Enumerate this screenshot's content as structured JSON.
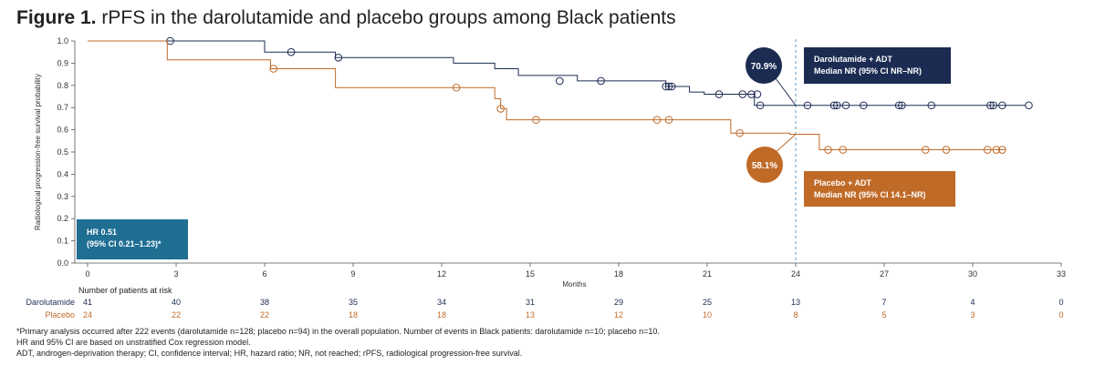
{
  "title": {
    "prefix": "Figure 1.",
    "text": " rPFS in the darolutamide and placebo groups among Black patients"
  },
  "colors": {
    "darolutamide": "#1b2b52",
    "placebo": "#c06a28",
    "hr_box": "#1f6f93",
    "dashed": "#4a90c4"
  },
  "chart_data": {
    "type": "line",
    "subtype": "kaplan-meier",
    "xlabel": "Months",
    "ylabel": "Radiological progression-free survival probability",
    "xlim": [
      0,
      33
    ],
    "ylim": [
      0,
      1.0
    ],
    "x_ticks": [
      0,
      3,
      6,
      9,
      12,
      15,
      18,
      21,
      24,
      27,
      30,
      33
    ],
    "y_ticks": [
      0.0,
      0.1,
      0.2,
      0.3,
      0.4,
      0.5,
      0.6,
      0.7,
      0.8,
      0.9,
      1.0
    ],
    "y_tick_labels": [
      "0.0",
      "0.1",
      "0.2",
      "0.3",
      "0.4",
      "0.5",
      "0.6",
      "0.7",
      "0.8",
      "0.9",
      "1.0"
    ],
    "grid": false,
    "reference_line_x": 24,
    "series": [
      {
        "name": "Darolutamide",
        "steps": [
          [
            0,
            1.0
          ],
          [
            6.0,
            0.95
          ],
          [
            8.4,
            0.925
          ],
          [
            12.4,
            0.9
          ],
          [
            13.8,
            0.875
          ],
          [
            14.6,
            0.845
          ],
          [
            16.6,
            0.82
          ],
          [
            19.6,
            0.795
          ],
          [
            20.4,
            0.77
          ],
          [
            20.9,
            0.76
          ],
          [
            22.6,
            0.71
          ],
          [
            31.8,
            0.71
          ]
        ],
        "censored": [
          [
            2.8,
            1.0
          ],
          [
            6.9,
            0.95
          ],
          [
            8.5,
            0.925
          ],
          [
            16.0,
            0.82
          ],
          [
            17.4,
            0.82
          ],
          [
            19.6,
            0.795
          ],
          [
            19.7,
            0.795
          ],
          [
            19.8,
            0.795
          ],
          [
            21.4,
            0.76
          ],
          [
            22.2,
            0.76
          ],
          [
            22.5,
            0.76
          ],
          [
            22.7,
            0.76
          ],
          [
            22.8,
            0.71
          ],
          [
            24.4,
            0.71
          ],
          [
            25.3,
            0.71
          ],
          [
            25.4,
            0.71
          ],
          [
            25.7,
            0.71
          ],
          [
            26.3,
            0.71
          ],
          [
            27.5,
            0.71
          ],
          [
            27.6,
            0.71
          ],
          [
            28.6,
            0.71
          ],
          [
            30.6,
            0.71
          ],
          [
            30.7,
            0.71
          ],
          [
            31.0,
            0.71
          ],
          [
            31.9,
            0.71
          ]
        ]
      },
      {
        "name": "Placebo",
        "steps": [
          [
            0,
            1.0
          ],
          [
            2.7,
            0.915
          ],
          [
            6.2,
            0.875
          ],
          [
            8.4,
            0.79
          ],
          [
            13.8,
            0.74
          ],
          [
            14.0,
            0.695
          ],
          [
            14.2,
            0.645
          ],
          [
            21.8,
            0.585
          ],
          [
            23.8,
            0.58
          ],
          [
            24.8,
            0.51
          ],
          [
            31.1,
            0.51
          ]
        ],
        "censored": [
          [
            6.3,
            0.875
          ],
          [
            12.5,
            0.79
          ],
          [
            14.0,
            0.695
          ],
          [
            15.2,
            0.645
          ],
          [
            19.3,
            0.645
          ],
          [
            19.7,
            0.645
          ],
          [
            22.1,
            0.585
          ],
          [
            25.1,
            0.51
          ],
          [
            25.6,
            0.51
          ],
          [
            28.4,
            0.51
          ],
          [
            29.1,
            0.51
          ],
          [
            30.5,
            0.51
          ],
          [
            30.8,
            0.51
          ],
          [
            31.0,
            0.51
          ]
        ]
      }
    ],
    "annotations": {
      "daro_pct": "70.9%",
      "pbo_pct": "58.1%",
      "daro_title": "Darolutamide + ADT",
      "daro_median": "Median NR (95% CI NR–NR)",
      "pbo_title": "Placebo + ADT",
      "pbo_median": "Median NR (95% CI 14.1–NR)",
      "hr_line1": "HR 0.51",
      "hr_line2": "(95% CI 0.21–1.23)*"
    },
    "risk_table": {
      "header": "Number of patients at risk",
      "rows": [
        {
          "label": "Darolutamide",
          "values": [
            "41",
            "40",
            "38",
            "35",
            "34",
            "31",
            "29",
            "25",
            "13",
            "7",
            "4",
            "0"
          ]
        },
        {
          "label": "Placebo",
          "values": [
            "24",
            "22",
            "22",
            "18",
            "18",
            "13",
            "12",
            "10",
            "8",
            "5",
            "3",
            "0"
          ]
        }
      ]
    }
  },
  "footnotes": [
    "*Primary analysis occurred after 222 events (darolutamide n=128; placebo n=94) in the overall population. Number of events in Black patients: darolutamide n=10; placebo n=10.",
    "HR and 95% CI are based on unstratified Cox regression model.",
    "ADT, androgen-deprivation therapy; CI, confidence interval; HR, hazard ratio; NR, not reached; rPFS, radiological progression-free survival."
  ]
}
